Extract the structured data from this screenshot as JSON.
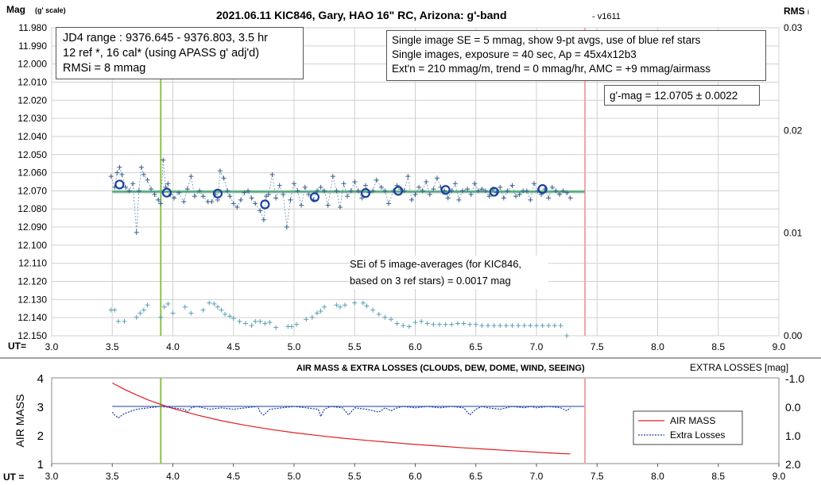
{
  "chart_data": [
    {
      "type": "scatter",
      "title": "2021.06.11 KIC846, Gary, HAO 16\" RC, Arizona: g'-band",
      "version_tag": "- v1611",
      "ylabel": "Mag (g' scale)",
      "y2label": "RMS i",
      "xlabel": "UT=",
      "xlim": [
        3.0,
        9.0
      ],
      "ylim": [
        11.98,
        12.15
      ],
      "y_inverted": true,
      "y2lim": [
        0.0,
        0.03
      ],
      "x_ticks": [
        "3.0",
        "3.5",
        "4.0",
        "4.5",
        "5.0",
        "5.5",
        "6.0",
        "6.5",
        "7.0",
        "7.5",
        "8.0",
        "8.5",
        "9.0"
      ],
      "y_ticks": [
        "11.980",
        "11.990",
        "12.000",
        "12.010",
        "12.020",
        "12.030",
        "12.040",
        "12.050",
        "12.060",
        "12.070",
        "12.080",
        "12.090",
        "12.100",
        "12.110",
        "12.120",
        "12.130",
        "12.140",
        "12.150"
      ],
      "y2_ticks": [
        "0.03",
        "0.02",
        "0.01",
        "0.00"
      ],
      "grid": true,
      "colors": {
        "single": "#6a8fb0",
        "avg": "#1a3fa0",
        "trend": "#3cb371",
        "refline": "#8cc63f",
        "endline": "#f4a6a6",
        "rms": "#5aa0b0"
      },
      "vertical_markers": [
        {
          "x": 3.9,
          "color": "#8cc63f"
        },
        {
          "x": 7.4,
          "color": "#f4a6a6"
        }
      ],
      "trend_line": {
        "x": [
          3.5,
          7.4
        ],
        "y": [
          12.0705,
          12.0705
        ]
      },
      "series": [
        {
          "kind": "single_images",
          "x": [
            3.49,
            3.52,
            3.54,
            3.56,
            3.58,
            3.61,
            3.64,
            3.67,
            3.7,
            3.72,
            3.74,
            3.76,
            3.79,
            3.82,
            3.85,
            3.88,
            3.9,
            3.92,
            3.94,
            3.96,
            3.98,
            4.01,
            4.05,
            4.09,
            4.12,
            4.15,
            4.18,
            4.22,
            4.25,
            4.29,
            4.32,
            4.35,
            4.37,
            4.39,
            4.42,
            4.45,
            4.47,
            4.5,
            4.53,
            4.56,
            4.59,
            4.62,
            4.65,
            4.68,
            4.72,
            4.75,
            4.77,
            4.79,
            4.82,
            4.85,
            4.88,
            4.91,
            4.94,
            4.97,
            5.0,
            5.03,
            5.06,
            5.09,
            5.12,
            5.16,
            5.19,
            5.22,
            5.25,
            5.28,
            5.32,
            5.35,
            5.38,
            5.41,
            5.44,
            5.47,
            5.5,
            5.53,
            5.56,
            5.59,
            5.62,
            5.65,
            5.68,
            5.72,
            5.75,
            5.78,
            5.82,
            5.85,
            5.88,
            5.91,
            5.94,
            5.97,
            6.0,
            6.03,
            6.06,
            6.09,
            6.12,
            6.15,
            6.18,
            6.21,
            6.24,
            6.27,
            6.3,
            6.33,
            6.36,
            6.39,
            6.43,
            6.46,
            6.49,
            6.52,
            6.55,
            6.58,
            6.61,
            6.64,
            6.67,
            6.7,
            6.73,
            6.76,
            6.8,
            6.83,
            6.86,
            6.89,
            6.92,
            6.95,
            6.98,
            7.01,
            7.04,
            7.07,
            7.1,
            7.13,
            7.16,
            7.19,
            7.22,
            7.25,
            7.28
          ],
          "y": [
            12.062,
            12.068,
            12.06,
            12.057,
            12.061,
            12.068,
            12.07,
            12.066,
            12.093,
            12.07,
            12.057,
            12.061,
            12.064,
            12.069,
            12.072,
            12.075,
            12.077,
            12.053,
            12.068,
            12.066,
            12.072,
            12.074,
            12.071,
            12.076,
            12.069,
            12.062,
            12.073,
            12.07,
            12.073,
            12.076,
            12.076,
            12.072,
            12.075,
            12.059,
            12.063,
            12.07,
            12.073,
            12.077,
            12.079,
            12.075,
            12.071,
            12.07,
            12.074,
            12.077,
            12.081,
            12.086,
            12.073,
            12.072,
            12.061,
            12.074,
            12.067,
            12.072,
            12.09,
            12.075,
            12.066,
            12.07,
            12.078,
            12.068,
            12.072,
            12.075,
            12.07,
            12.068,
            12.07,
            12.078,
            12.062,
            12.07,
            12.079,
            12.066,
            12.073,
            12.07,
            12.065,
            12.07,
            12.074,
            12.067,
            12.071,
            12.07,
            12.064,
            12.068,
            12.07,
            12.077,
            12.07,
            12.067,
            12.069,
            12.07,
            12.062,
            12.075,
            12.072,
            12.068,
            12.07,
            12.065,
            12.072,
            12.069,
            12.063,
            12.068,
            12.07,
            12.074,
            12.07,
            12.066,
            12.075,
            12.07,
            12.069,
            12.072,
            12.066,
            12.07,
            12.069,
            12.07,
            12.073,
            12.069,
            12.071,
            12.068,
            12.074,
            12.07,
            12.067,
            12.073,
            12.072,
            12.07,
            12.07,
            12.075,
            12.066,
            12.07,
            12.072,
            12.069,
            12.074,
            12.068,
            12.07,
            12.072,
            12.07,
            12.071,
            12.074
          ]
        },
        {
          "kind": "averages",
          "x": [
            3.56,
            3.95,
            4.37,
            4.76,
            5.17,
            5.59,
            5.86,
            6.25,
            6.65,
            7.05
          ],
          "y": [
            12.0665,
            12.071,
            12.0715,
            12.0775,
            12.0735,
            12.0712,
            12.07,
            12.0695,
            12.0705,
            12.069
          ]
        },
        {
          "kind": "rms_i",
          "x": [
            3.49,
            3.52,
            3.55,
            3.6,
            3.7,
            3.73,
            3.76,
            3.79,
            3.9,
            3.93,
            3.96,
            4.0,
            4.1,
            4.15,
            4.25,
            4.3,
            4.34,
            4.37,
            4.4,
            4.43,
            4.47,
            4.5,
            4.55,
            4.6,
            4.65,
            4.68,
            4.72,
            4.76,
            4.8,
            4.85,
            4.95,
            4.98,
            5.02,
            5.1,
            5.15,
            5.19,
            5.22,
            5.25,
            5.35,
            5.38,
            5.42,
            5.5,
            5.57,
            5.6,
            5.65,
            5.7,
            5.75,
            5.8,
            5.85,
            5.9,
            5.95,
            6.0,
            6.05,
            6.1,
            6.15,
            6.2,
            6.25,
            6.3,
            6.35,
            6.4,
            6.45,
            6.5,
            6.55,
            6.6,
            6.65,
            6.7,
            6.75,
            6.8,
            6.85,
            6.9,
            6.95,
            7.0,
            7.05,
            7.1,
            7.15,
            7.2,
            7.25
          ],
          "y": [
            0.0025,
            0.0025,
            0.0014,
            0.0014,
            0.0018,
            0.0022,
            0.0025,
            0.003,
            0.0018,
            0.0028,
            0.0031,
            0.0022,
            0.0028,
            0.0022,
            0.0025,
            0.0032,
            0.0031,
            0.0028,
            0.0025,
            0.0021,
            0.0019,
            0.0017,
            0.0014,
            0.0012,
            0.001,
            0.0014,
            0.0014,
            0.0012,
            0.0013,
            0.0008,
            0.0009,
            0.0009,
            0.0011,
            0.0016,
            0.0018,
            0.0022,
            0.0024,
            0.0028,
            0.003,
            0.0028,
            0.003,
            0.0032,
            0.0032,
            0.0029,
            0.0025,
            0.0021,
            0.0018,
            0.0016,
            0.0012,
            0.001,
            0.0009,
            0.0013,
            0.0014,
            0.0012,
            0.0011,
            0.0011,
            0.0011,
            0.0011,
            0.0012,
            0.0012,
            0.0011,
            0.0011,
            0.001,
            0.001,
            0.001,
            0.001,
            0.001,
            0.001,
            0.001,
            0.001,
            0.001,
            0.001,
            0.001,
            0.001,
            0.001,
            0.001,
            0.0
          ]
        }
      ],
      "annotations": {
        "box1": [
          "JD4 range : 9376.645 - 9376.803,  3.5  hr",
          "12 ref *, 16 cal* (using APASS g' adj'd)",
          "RMSi = 8 mmag"
        ],
        "box2": [
          "Single image SE = 5 mmag, show  9-pt avgs, use of blue ref stars",
          "Single images, exposure = 40 sec, Ap = 45x4x12b3",
          "Ext'n = 210 mmag/m, trend =  0 mmag/hr, AMC = +9 mmag/airmass"
        ],
        "box3": "g'-mag = 12.0705 ± 0.0022",
        "sei_note": [
          "SEi of 5 image-averages (for KIC846,",
          "based on 3 ref stars) = 0.0017 mag"
        ]
      }
    },
    {
      "type": "line",
      "title": "AIR MASS & EXTRA LOSSES (CLOUDS, DEW, DOME, WIND, SEEING)",
      "ylabel": "AIR MASS",
      "y2label": "EXTRA LOSSES [mag]",
      "xlabel": "UT =",
      "xlim": [
        3.0,
        9.0
      ],
      "ylim": [
        1,
        4
      ],
      "y2lim": [
        -1.0,
        2.0
      ],
      "y2_inverted": true,
      "x_ticks": [
        "3.0",
        "3.5",
        "4.0",
        "4.5",
        "5.0",
        "5.5",
        "6.0",
        "6.5",
        "7.0",
        "7.5",
        "8.0",
        "8.5",
        "9.0"
      ],
      "y_ticks": [
        "4",
        "3",
        "2",
        "1"
      ],
      "y2_ticks": [
        "-1.0",
        "0.0",
        "1.0",
        "2.0"
      ],
      "colors": {
        "airmass": "#e02020",
        "losses": "#1a3fa0",
        "refline": "#8cc63f",
        "endline": "#f4a6a6"
      },
      "vertical_markers": [
        {
          "x": 3.9,
          "color": "#8cc63f"
        },
        {
          "x": 7.4,
          "color": "#f4a6a6"
        }
      ],
      "legend": [
        "AIR MASS",
        "Extra Losses"
      ],
      "series": [
        {
          "name": "AIR MASS",
          "x": [
            3.5,
            3.6,
            3.7,
            3.8,
            3.9,
            4.0,
            4.2,
            4.4,
            4.6,
            4.8,
            5.0,
            5.2,
            5.4,
            5.6,
            5.8,
            6.0,
            6.2,
            6.4,
            6.6,
            6.8,
            7.0,
            7.2,
            7.28
          ],
          "y": [
            3.82,
            3.6,
            3.4,
            3.22,
            3.07,
            2.93,
            2.7,
            2.5,
            2.34,
            2.2,
            2.08,
            1.98,
            1.89,
            1.81,
            1.74,
            1.67,
            1.61,
            1.55,
            1.5,
            1.45,
            1.4,
            1.35,
            1.34
          ]
        },
        {
          "name": "Extra Losses",
          "x": [
            3.5,
            3.52,
            3.55,
            3.6,
            3.7,
            3.8,
            3.9,
            4.0,
            4.1,
            4.12,
            4.15,
            4.2,
            4.3,
            4.4,
            4.5,
            4.6,
            4.7,
            4.72,
            4.75,
            4.8,
            4.9,
            5.0,
            5.1,
            5.2,
            5.22,
            5.25,
            5.3,
            5.4,
            5.45,
            5.5,
            5.6,
            5.7,
            5.75,
            5.8,
            5.85,
            5.9,
            6.0,
            6.1,
            6.2,
            6.3,
            6.4,
            6.45,
            6.5,
            6.55,
            6.6,
            6.7,
            6.8,
            6.9,
            6.95,
            7.0,
            7.1,
            7.2,
            7.25,
            7.28
          ],
          "y": [
            0.2,
            0.3,
            0.4,
            0.25,
            0.1,
            0.05,
            0.0,
            0.05,
            0.1,
            0.2,
            0.05,
            0.0,
            0.1,
            0.05,
            0.1,
            0.05,
            0.0,
            0.2,
            0.3,
            0.1,
            0.05,
            0.0,
            0.05,
            0.1,
            0.35,
            0.1,
            0.0,
            0.05,
            0.3,
            0.05,
            0.1,
            0.2,
            0.05,
            0.15,
            0.05,
            0.0,
            0.05,
            0.0,
            0.05,
            0.0,
            0.05,
            0.3,
            0.1,
            0.0,
            0.05,
            0.1,
            0.0,
            0.05,
            0.0,
            0.05,
            0.0,
            0.05,
            0.15,
            0.05
          ]
        }
      ]
    }
  ]
}
